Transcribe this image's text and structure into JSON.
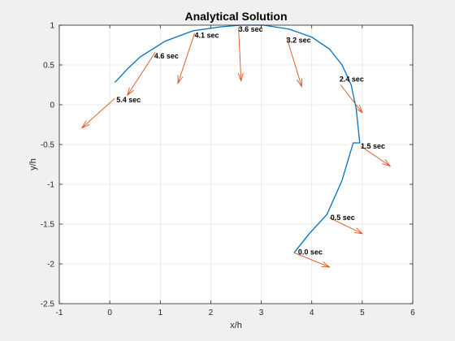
{
  "chart_data": {
    "type": "line",
    "title": "Analytical Solution",
    "xlabel": "x/h",
    "ylabel": "y/h",
    "xlim": [
      -1,
      6
    ],
    "ylim": [
      -2.5,
      1
    ],
    "xticks": [
      -1,
      0,
      1,
      2,
      3,
      4,
      5,
      6
    ],
    "yticks": [
      -2.5,
      -2,
      -1.5,
      -1,
      -0.5,
      0,
      0.5,
      1
    ],
    "xtick_labels": [
      "-1",
      "0",
      "1",
      "2",
      "3",
      "4",
      "5",
      "6"
    ],
    "ytick_labels": [
      "-2.5",
      "-2",
      "-1.5",
      "-1",
      "-0.5",
      "0",
      "0.5",
      "1"
    ],
    "grid": true,
    "colors": {
      "trajectory": "#0072BD",
      "vectors": "#D95319",
      "axes_bg": "#ffffff",
      "figure_bg": "#f0f0f0",
      "grid": "#e5e5e5"
    },
    "series": [
      {
        "x": [
          3.65,
          3.95,
          4.3,
          4.6,
          4.82,
          4.95,
          4.88,
          4.78,
          4.6,
          4.35,
          4.0,
          3.55,
          3.05,
          2.6,
          2.2,
          1.65,
          1.1,
          0.6,
          0.35,
          0.1
        ],
        "y": [
          -1.86,
          -1.62,
          -1.38,
          -0.95,
          -0.48,
          -0.48,
          -0.05,
          0.25,
          0.5,
          0.7,
          0.85,
          0.95,
          1.0,
          1.0,
          0.98,
          0.93,
          0.8,
          0.6,
          0.45,
          0.28
        ]
      }
    ],
    "annotations": [
      {
        "text": "0.0 sec",
        "x": 3.73,
        "y": -1.85
      },
      {
        "text": "0.5 sec",
        "x": 4.37,
        "y": -1.42
      },
      {
        "text": "1.5 sec",
        "x": 4.97,
        "y": -0.52
      },
      {
        "text": "2.4 sec",
        "x": 4.55,
        "y": 0.32
      },
      {
        "text": "3.2 sec",
        "x": 3.5,
        "y": 0.81
      },
      {
        "text": "3.6 sec",
        "x": 2.55,
        "y": 0.95
      },
      {
        "text": "4.1 sec",
        "x": 1.68,
        "y": 0.87
      },
      {
        "text": "4.6 sec",
        "x": 0.88,
        "y": 0.61
      },
      {
        "text": "5.4 sec",
        "x": 0.13,
        "y": 0.06
      }
    ],
    "vectors": [
      {
        "x0": 3.65,
        "y0": -1.86,
        "x1": 4.35,
        "y1": -2.04
      },
      {
        "x0": 4.35,
        "y0": -1.42,
        "x1": 5.0,
        "y1": -1.62
      },
      {
        "x0": 4.97,
        "y0": -0.52,
        "x1": 5.55,
        "y1": -0.77
      },
      {
        "x0": 4.57,
        "y0": 0.25,
        "x1": 5.0,
        "y1": -0.1
      },
      {
        "x0": 3.5,
        "y0": 0.85,
        "x1": 3.8,
        "y1": 0.23
      },
      {
        "x0": 2.55,
        "y0": 0.97,
        "x1": 2.6,
        "y1": 0.3
      },
      {
        "x0": 1.68,
        "y0": 0.9,
        "x1": 1.35,
        "y1": 0.27
      },
      {
        "x0": 0.9,
        "y0": 0.66,
        "x1": 0.35,
        "y1": 0.12
      },
      {
        "x0": 0.1,
        "y0": 0.08,
        "x1": -0.55,
        "y1": -0.29
      }
    ]
  }
}
